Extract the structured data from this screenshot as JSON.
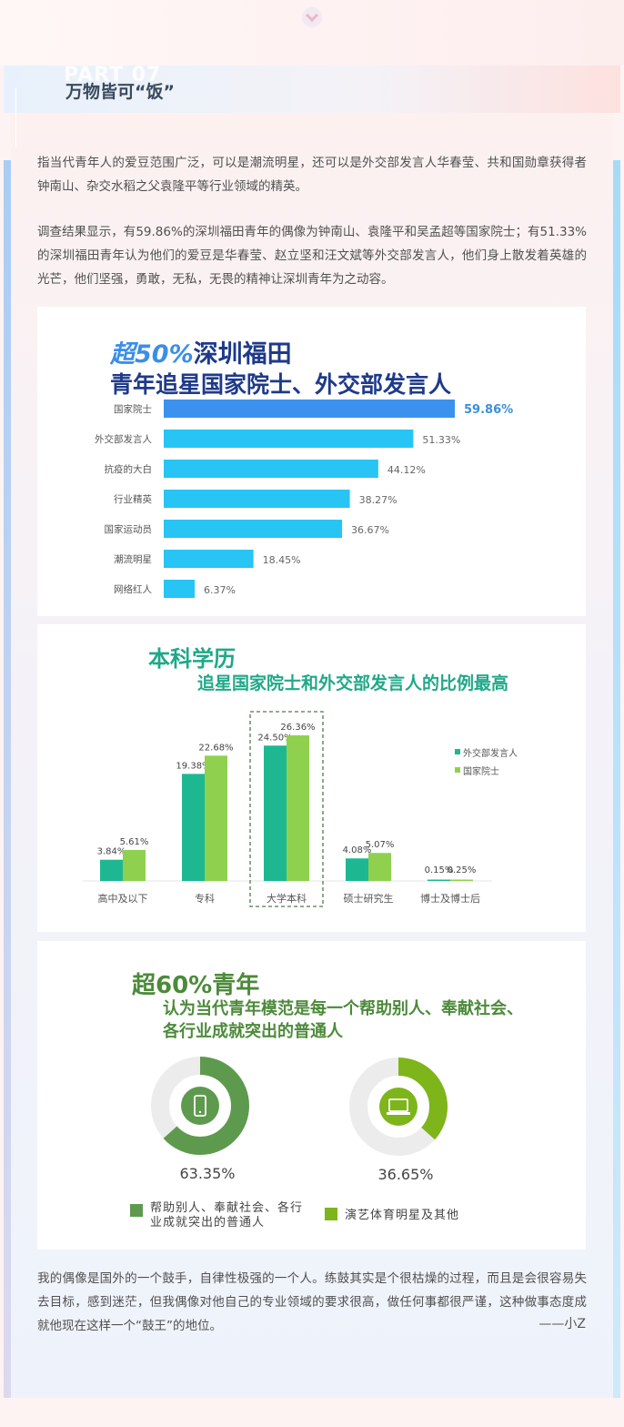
{
  "header": {
    "part_label": "PART 07",
    "part_title": "万物皆可“饭”"
  },
  "paragraphs": {
    "p1": "指当代青年人的爱豆范围广泛，可以是潮流明星，还可以是外交部发言人华春莹、共和国勋章获得者钟南山、杂交水稻之父袁隆平等行业领域的精英。",
    "p2": "调查结果显示，有59.86%的深圳福田青年的偶像为钟南山、袁隆平和吴孟超等国家院士；有51.33%的深圳福田青年认为他们的爱豆是华春莹、赵立坚和汪文斌等外交部发言人，他们身上散发着英雄的光芒，他们坚强，勇敢，无私，无畏的精神让深圳青年为之动容。",
    "p3": "我的偶像是国外的一个鼓手，自律性极强的一个人。练鼓其实是个很枯燥的过程，而且是会很容易失去目标，感到迷茫，但我偶像对他自己的专业领域的要求很高，做任何事都很严谨，这种做事态度成就他现在这样一个“鼓王”的地位。",
    "signature": "——小Z"
  },
  "chart_data": [
    {
      "type": "bar",
      "orientation": "horizontal",
      "title_highlight": "超50%",
      "title_rest": "深圳福田",
      "subtitle": "青年追星国家院士、外交部发言人",
      "categories": [
        "国家院士",
        "外交部发言人",
        "抗疫的大白",
        "行业精英",
        "国家运动员",
        "潮流明星",
        "网络红人"
      ],
      "values": [
        59.86,
        51.33,
        44.12,
        38.27,
        36.67,
        18.45,
        6.37
      ],
      "value_labels": [
        "59.86%",
        "51.33%",
        "44.12%",
        "38.27%",
        "36.67%",
        "18.45%",
        "6.37%"
      ],
      "xlim": [
        0,
        70
      ],
      "colors": {
        "top": "#3a92ee",
        "other": "#27c4f4",
        "top_label": "#3a8fe0"
      }
    },
    {
      "type": "bar",
      "orientation": "vertical",
      "title": "本科学历",
      "subtitle": "追星国家院士和外交部发言人的比例最高",
      "categories": [
        "高中及以下",
        "专科",
        "大学本科",
        "硕士研究生",
        "博士及博士后"
      ],
      "series": [
        {
          "name": "外交部发言人",
          "values": [
            3.84,
            19.38,
            24.5,
            4.08,
            0.15
          ],
          "labels": [
            "3.84%",
            "19.38%",
            "24.50%",
            "4.08%",
            "0.15%"
          ],
          "color": "#1db892"
        },
        {
          "name": "国家院士",
          "values": [
            5.61,
            22.68,
            26.36,
            5.07,
            0.25
          ],
          "labels": [
            "5.61%",
            "22.68%",
            "26.36%",
            "5.07%",
            "0.25%"
          ],
          "color": "#8fd14f"
        }
      ],
      "ylim": [
        0,
        30
      ],
      "highlight_category": "大学本科",
      "legend_position": "right"
    },
    {
      "type": "pie",
      "style": "donut",
      "title": "超60%青年",
      "subtitle": "认为当代青年模范是每一个帮助别人、奉献社会、各行业成就突出的普通人",
      "slices": [
        {
          "name": "帮助别人、奉献社会、各行业成就突出的普通人",
          "value": 63.35,
          "label": "63.35%",
          "color": "#5e9a4e",
          "icon": "smartphone-icon"
        },
        {
          "name": "演艺体育明星及其他",
          "value": 36.65,
          "label": "36.65%",
          "color": "#7db51a",
          "icon": "laptop-icon"
        }
      ],
      "track_color": "#ececec",
      "legend_position": "bottom"
    }
  ]
}
